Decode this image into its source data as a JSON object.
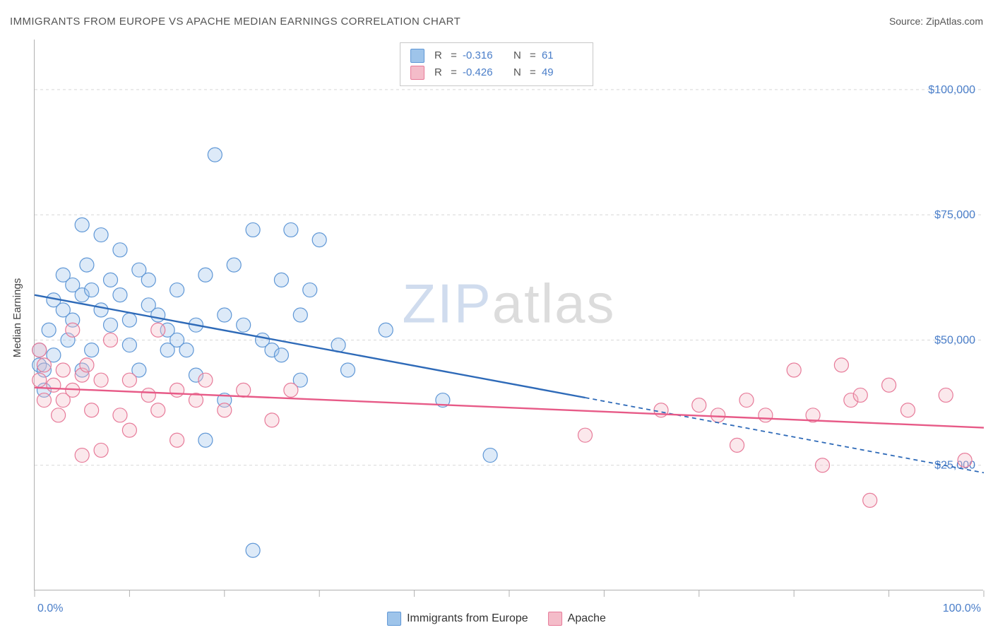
{
  "title": "IMMIGRANTS FROM EUROPE VS APACHE MEDIAN EARNINGS CORRELATION CHART",
  "source_label": "Source: ",
  "source_name": "ZipAtlas.com",
  "y_axis_title": "Median Earnings",
  "watermark_zip": "ZIP",
  "watermark_atlas": "atlas",
  "chart": {
    "type": "scatter",
    "xlim": [
      0,
      100
    ],
    "ylim": [
      0,
      110000
    ],
    "x_tick_positions": [
      0,
      10,
      20,
      30,
      40,
      50,
      60,
      70,
      80,
      90,
      100
    ],
    "x_axis_labels": [
      {
        "pos": 0,
        "text": "0.0%"
      },
      {
        "pos": 100,
        "text": "100.0%"
      }
    ],
    "y_grid": [
      25000,
      50000,
      75000,
      100000
    ],
    "y_tick_labels": [
      "$25,000",
      "$50,000",
      "$75,000",
      "$100,000"
    ],
    "background_color": "#ffffff",
    "grid_color": "#d8d8d8",
    "axis_color": "#b0b0b0",
    "marker_radius": 10,
    "marker_fill_opacity": 0.35,
    "marker_stroke_width": 1.2,
    "series": [
      {
        "name": "Immigrants from Europe",
        "color_fill": "#9ec4ea",
        "color_stroke": "#5f97d6",
        "r_value": "-0.316",
        "n_value": "61",
        "regression": {
          "solid": {
            "x1": 0,
            "y1": 59000,
            "x2": 58,
            "y2": 38500
          },
          "dashed": {
            "x1": 58,
            "y1": 38500,
            "x2": 100,
            "y2": 23500
          },
          "color": "#2e6ab8",
          "width": 2.4,
          "dash": "6 5"
        },
        "points": [
          {
            "x": 0.5,
            "y": 48000
          },
          {
            "x": 0.5,
            "y": 45000
          },
          {
            "x": 1,
            "y": 40000
          },
          {
            "x": 1,
            "y": 44000
          },
          {
            "x": 1.5,
            "y": 52000
          },
          {
            "x": 2,
            "y": 58000
          },
          {
            "x": 2,
            "y": 47000
          },
          {
            "x": 3,
            "y": 63000
          },
          {
            "x": 3,
            "y": 56000
          },
          {
            "x": 3.5,
            "y": 50000
          },
          {
            "x": 4,
            "y": 61000
          },
          {
            "x": 4,
            "y": 54000
          },
          {
            "x": 5,
            "y": 73000
          },
          {
            "x": 5,
            "y": 59000
          },
          {
            "x": 5,
            "y": 44000
          },
          {
            "x": 5.5,
            "y": 65000
          },
          {
            "x": 6,
            "y": 60000
          },
          {
            "x": 6,
            "y": 48000
          },
          {
            "x": 7,
            "y": 71000
          },
          {
            "x": 7,
            "y": 56000
          },
          {
            "x": 8,
            "y": 62000
          },
          {
            "x": 8,
            "y": 53000
          },
          {
            "x": 9,
            "y": 68000
          },
          {
            "x": 9,
            "y": 59000
          },
          {
            "x": 10,
            "y": 54000
          },
          {
            "x": 10,
            "y": 49000
          },
          {
            "x": 11,
            "y": 64000
          },
          {
            "x": 11,
            "y": 44000
          },
          {
            "x": 12,
            "y": 57000
          },
          {
            "x": 12,
            "y": 62000
          },
          {
            "x": 13,
            "y": 55000
          },
          {
            "x": 14,
            "y": 52000
          },
          {
            "x": 14,
            "y": 48000
          },
          {
            "x": 15,
            "y": 60000
          },
          {
            "x": 15,
            "y": 50000
          },
          {
            "x": 16,
            "y": 48000
          },
          {
            "x": 17,
            "y": 53000
          },
          {
            "x": 17,
            "y": 43000
          },
          {
            "x": 18,
            "y": 63000
          },
          {
            "x": 18,
            "y": 30000
          },
          {
            "x": 19,
            "y": 87000
          },
          {
            "x": 20,
            "y": 55000
          },
          {
            "x": 20,
            "y": 38000
          },
          {
            "x": 21,
            "y": 65000
          },
          {
            "x": 22,
            "y": 53000
          },
          {
            "x": 23,
            "y": 72000
          },
          {
            "x": 23,
            "y": 8000
          },
          {
            "x": 24,
            "y": 50000
          },
          {
            "x": 25,
            "y": 48000
          },
          {
            "x": 26,
            "y": 62000
          },
          {
            "x": 26,
            "y": 47000
          },
          {
            "x": 27,
            "y": 72000
          },
          {
            "x": 28,
            "y": 55000
          },
          {
            "x": 28,
            "y": 42000
          },
          {
            "x": 29,
            "y": 60000
          },
          {
            "x": 30,
            "y": 70000
          },
          {
            "x": 32,
            "y": 49000
          },
          {
            "x": 33,
            "y": 44000
          },
          {
            "x": 37,
            "y": 52000
          },
          {
            "x": 43,
            "y": 38000
          },
          {
            "x": 48,
            "y": 27000
          }
        ]
      },
      {
        "name": "Apache",
        "color_fill": "#f4bcc9",
        "color_stroke": "#e77a99",
        "r_value": "-0.426",
        "n_value": "49",
        "regression": {
          "solid": {
            "x1": 0,
            "y1": 40500,
            "x2": 100,
            "y2": 32500
          },
          "dashed": null,
          "color": "#e75a87",
          "width": 2.4,
          "dash": null
        },
        "points": [
          {
            "x": 0.5,
            "y": 48000
          },
          {
            "x": 0.5,
            "y": 42000
          },
          {
            "x": 1,
            "y": 38000
          },
          {
            "x": 1,
            "y": 45000
          },
          {
            "x": 2,
            "y": 41000
          },
          {
            "x": 2.5,
            "y": 35000
          },
          {
            "x": 3,
            "y": 44000
          },
          {
            "x": 3,
            "y": 38000
          },
          {
            "x": 4,
            "y": 52000
          },
          {
            "x": 4,
            "y": 40000
          },
          {
            "x": 5,
            "y": 27000
          },
          {
            "x": 5,
            "y": 43000
          },
          {
            "x": 5.5,
            "y": 45000
          },
          {
            "x": 6,
            "y": 36000
          },
          {
            "x": 7,
            "y": 42000
          },
          {
            "x": 7,
            "y": 28000
          },
          {
            "x": 8,
            "y": 50000
          },
          {
            "x": 9,
            "y": 35000
          },
          {
            "x": 10,
            "y": 42000
          },
          {
            "x": 10,
            "y": 32000
          },
          {
            "x": 12,
            "y": 39000
          },
          {
            "x": 13,
            "y": 52000
          },
          {
            "x": 13,
            "y": 36000
          },
          {
            "x": 15,
            "y": 40000
          },
          {
            "x": 15,
            "y": 30000
          },
          {
            "x": 17,
            "y": 38000
          },
          {
            "x": 18,
            "y": 42000
          },
          {
            "x": 20,
            "y": 36000
          },
          {
            "x": 22,
            "y": 40000
          },
          {
            "x": 25,
            "y": 34000
          },
          {
            "x": 27,
            "y": 40000
          },
          {
            "x": 58,
            "y": 31000
          },
          {
            "x": 66,
            "y": 36000
          },
          {
            "x": 70,
            "y": 37000
          },
          {
            "x": 72,
            "y": 35000
          },
          {
            "x": 74,
            "y": 29000
          },
          {
            "x": 75,
            "y": 38000
          },
          {
            "x": 77,
            "y": 35000
          },
          {
            "x": 80,
            "y": 44000
          },
          {
            "x": 82,
            "y": 35000
          },
          {
            "x": 83,
            "y": 25000
          },
          {
            "x": 85,
            "y": 45000
          },
          {
            "x": 86,
            "y": 38000
          },
          {
            "x": 87,
            "y": 39000
          },
          {
            "x": 88,
            "y": 18000
          },
          {
            "x": 90,
            "y": 41000
          },
          {
            "x": 92,
            "y": 36000
          },
          {
            "x": 96,
            "y": 39000
          },
          {
            "x": 98,
            "y": 26000
          }
        ]
      }
    ]
  },
  "legend_top": {
    "r_label": "R",
    "n_label": "N",
    "eq": "="
  },
  "legend_bottom": {
    "label1": "Immigrants from Europe",
    "label2": "Apache"
  }
}
